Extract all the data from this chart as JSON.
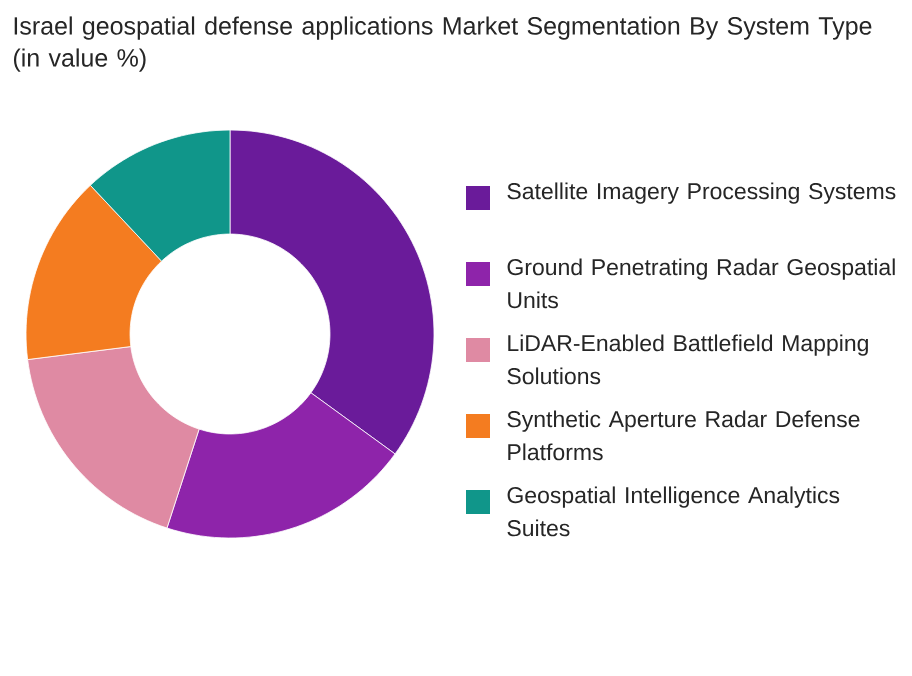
{
  "chart_data": {
    "type": "donut",
    "title": "Israel geospatial defense applications Market Segmentation By System Type (in value %)",
    "categories": [
      "Satellite Imagery Processing Systems",
      "Ground Penetrating Radar Geospatial Units",
      "LiDAR-Enabled Battlefield Mapping Solutions",
      "Synthetic Aperture Radar Defense Platforms",
      "Geospatial Intelligence Analytics Suites"
    ],
    "values": [
      35,
      20,
      18,
      15,
      12
    ],
    "colors": [
      "#6a1b9a",
      "#8e24aa",
      "#df8aa3",
      "#f47c20",
      "#10968a"
    ],
    "legend": "right"
  }
}
